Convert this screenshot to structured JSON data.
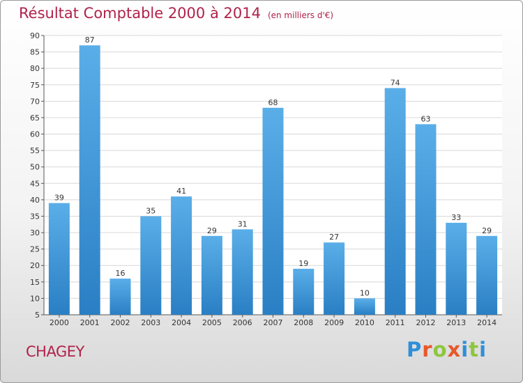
{
  "chart_data": {
    "type": "bar",
    "title": "Résultat Comptable 2000 à 2014",
    "subtitle": "(en milliers d'€)",
    "categories": [
      "2000",
      "2001",
      "2002",
      "2003",
      "2004",
      "2005",
      "2006",
      "2007",
      "2008",
      "2009",
      "2010",
      "2011",
      "2012",
      "2013",
      "2014"
    ],
    "values": [
      39,
      87,
      16,
      35,
      41,
      29,
      31,
      68,
      19,
      27,
      10,
      74,
      63,
      33,
      29
    ],
    "ylim": [
      5,
      90
    ],
    "yticks": [
      "5",
      "10",
      "15",
      "20",
      "25",
      "30",
      "35",
      "40",
      "45",
      "50",
      "55",
      "60",
      "65",
      "70",
      "75",
      "80",
      "85",
      "90"
    ],
    "xlabel": "",
    "ylabel": "",
    "grid": true,
    "bar_color_light": "#5aaee8",
    "bar_color_dark": "#2a7fc4"
  },
  "footer": {
    "commune": "CHAGEY",
    "brand": "Proxiti"
  },
  "colors": {
    "title": "#b0224a",
    "brand_letters": [
      "#2f8fd8",
      "#e8582b",
      "#8dc63f",
      "#e8582b",
      "#2f8fd8",
      "#8dc63f",
      "#2f8fd8"
    ]
  }
}
